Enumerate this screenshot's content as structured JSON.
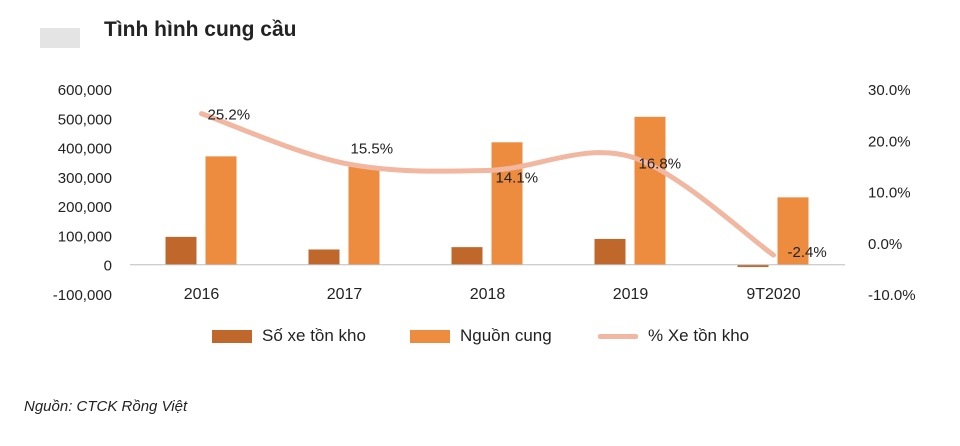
{
  "header": {
    "title": "Tình hình cung cầu"
  },
  "footer": {
    "source": "Nguồn: CTCK Rồng Việt"
  },
  "colors": {
    "inventory": "#c0672c",
    "supply": "#ed8b3f",
    "pct": "#f1b7a0",
    "axis": "#bdbdbd"
  },
  "chart_data": {
    "type": "bar",
    "categories": [
      "2016",
      "2017",
      "2018",
      "2019",
      "9T2020"
    ],
    "series": [
      {
        "name": "Số xe tồn kho",
        "type": "bar",
        "axis": "left",
        "values": [
          95000,
          52000,
          60000,
          88000,
          -8000
        ]
      },
      {
        "name": "Nguồn cung",
        "type": "bar",
        "axis": "left",
        "values": [
          370000,
          335000,
          418000,
          505000,
          230000
        ]
      },
      {
        "name": "% Xe tồn kho",
        "type": "line",
        "axis": "right",
        "values": [
          25.2,
          15.5,
          14.1,
          16.8,
          -2.4
        ],
        "labels": [
          "25.2%",
          "15.5%",
          "14.1%",
          "16.8%",
          "-2.4%"
        ]
      }
    ],
    "y_left": {
      "ylim": [
        -100000,
        600000
      ],
      "ticks": [
        600000,
        500000,
        400000,
        300000,
        200000,
        100000,
        0,
        -100000
      ],
      "tick_labels": [
        "600,000",
        "500,000",
        "400,000",
        "300,000",
        "200,000",
        "100,000",
        "0",
        "-100,000"
      ]
    },
    "y_right": {
      "ylim": [
        -10,
        30
      ],
      "ticks": [
        30,
        20,
        10,
        0,
        -10
      ],
      "tick_labels": [
        "30.0%",
        "20.0%",
        "10.0%",
        "0.0%",
        "-10.0%"
      ]
    },
    "legend": {
      "position": "bottom"
    },
    "grid": false
  }
}
